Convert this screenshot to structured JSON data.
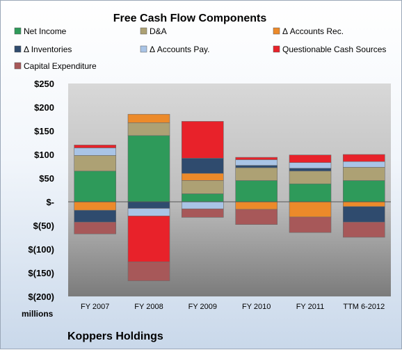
{
  "chart_data": {
    "type": "bar",
    "stacked": true,
    "title": "Free Cash Flow Components",
    "categories": [
      "FY 2007",
      "FY 2008",
      "FY 2009",
      "FY 2010",
      "FY 2011",
      "TTM 6-2012"
    ],
    "y_unit_label": "millions",
    "company": "Koppers Holdings",
    "ylim": [
      -200,
      250
    ],
    "yticks": [
      -200,
      -150,
      -100,
      -50,
      0,
      50,
      100,
      150,
      200,
      250
    ],
    "ytick_labels": [
      "$(200)",
      "$(150)",
      "$(100)",
      "$(50)",
      "$-",
      "$50",
      "$100",
      "$150",
      "$200",
      "$250"
    ],
    "legend_placement": "top",
    "grid": false,
    "series": [
      {
        "name": "Net Income",
        "color": "#2e9a5a",
        "values": [
          65,
          140,
          17,
          45,
          38,
          45
        ]
      },
      {
        "name": "D&A",
        "color": "#ada174",
        "values": [
          33,
          27,
          28,
          27,
          27,
          28
        ]
      },
      {
        "name": "Δ Accounts Rec.",
        "color": "#ec8a2a",
        "values": [
          -18,
          18,
          15,
          -16,
          -32,
          -10
        ]
      },
      {
        "name": "Δ Inventories",
        "color": "#2f4b6e",
        "values": [
          -25,
          -14,
          32,
          5,
          6,
          -33
        ]
      },
      {
        "name": "Δ Accounts Pay.",
        "color": "#a9c4e6",
        "values": [
          16,
          -16,
          -15,
          12,
          12,
          12
        ]
      },
      {
        "name": "Questionable Cash Sources",
        "color": "#e8222a",
        "values": [
          6,
          -97,
          78,
          5,
          16,
          15
        ]
      },
      {
        "name": "Capital Expenditure",
        "color": "#a75859",
        "values": [
          -25,
          -40,
          -18,
          -32,
          -33,
          -32
        ]
      }
    ]
  }
}
